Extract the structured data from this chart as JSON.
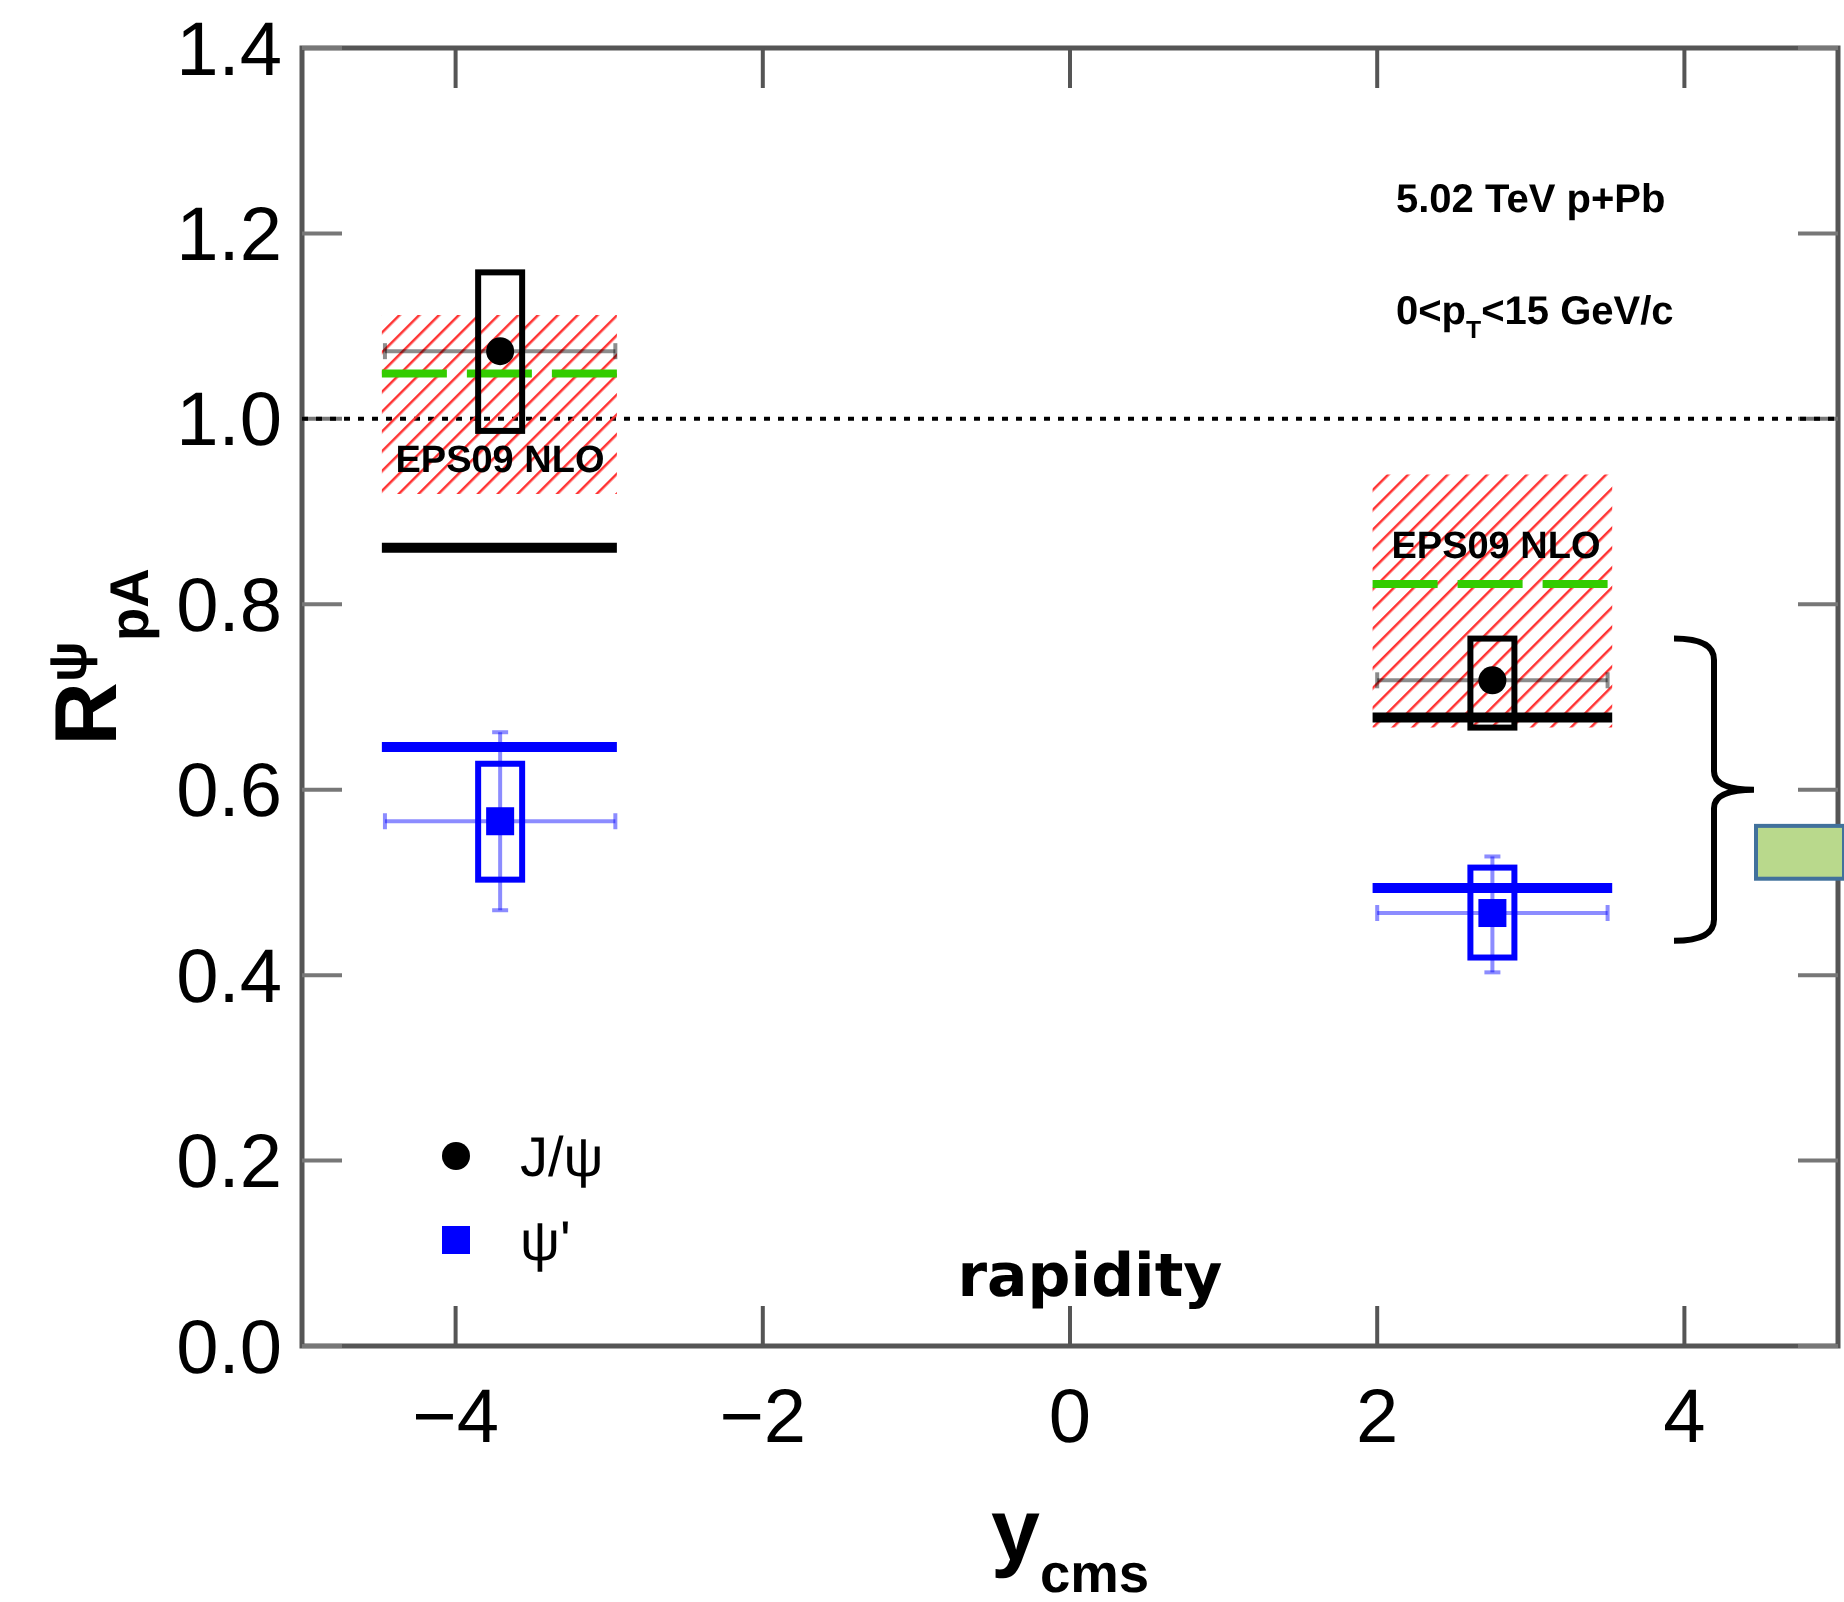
{
  "chart_data": {
    "type": "scatter",
    "annotations": [
      "5.02 TeV p+Pb",
      "0<p$_{T}$<15 GeV/c",
      "rapidity",
      "EPS09 NLO",
      "EPS09 NLO"
    ],
    "xlabel": "y$_{cms}$",
    "ylabel": "R$^{ψ}$$_{pA}$",
    "xlim": [
      -5,
      5
    ],
    "ylim": [
      0,
      1.4
    ],
    "xticks": [
      {
        "value": -4,
        "label": "−4"
      },
      {
        "value": -2,
        "label": "−2"
      },
      0,
      2,
      4
    ],
    "yticks": [
      {
        "value": 0,
        "label": "0.0"
      },
      {
        "value": 0.2,
        "label": "0.2"
      },
      {
        "value": 0.4,
        "label": "0.4"
      },
      {
        "value": 0.6,
        "label": "0.6"
      },
      {
        "value": 0.8,
        "label": "0.8"
      },
      {
        "value": 1,
        "label": "1.0"
      },
      {
        "value": 1.2,
        "label": "1.2"
      },
      {
        "value": 1.4,
        "label": "1.4"
      }
    ],
    "ref_lines": [
      {
        "axis": "y",
        "value": 1,
        "color": "#000000",
        "line_style": "dotted"
      }
    ],
    "legend": "bottom left",
    "series": [
      {
        "type": "line",
        "color": "#33cc00",
        "line_style": "dashed",
        "x": [
          -4.48,
          -2.95,
          0,
          1.97,
          3.53
        ],
        "values": [
          1.049,
          1.049,
          null,
          0.822,
          0.822
        ],
        "lower": [
          0.919,
          0.919,
          null,
          0.667,
          0.667
        ],
        "upper": [
          1.112,
          1.112,
          null,
          0.94,
          0.94
        ]
      },
      {
        "type": "line",
        "color": "#000000",
        "x": [
          -4.48,
          -2.95,
          0,
          1.97,
          3.53
        ],
        "values": [
          0.861,
          0.861,
          null,
          0.678,
          0.678
        ]
      },
      {
        "type": "line",
        "color": "#0000ff",
        "x": [
          -4.48,
          -2.95,
          0,
          1.97,
          3.53
        ],
        "values": [
          0.646,
          0.646,
          null,
          0.494,
          0.494
        ]
      },
      {
        "type": "bar",
        "color": "#000000",
        "x": [
          -3.71,
          2.75
        ],
        "base": [
          0.987,
          0.667
        ],
        "values": [
          0.171,
          0.096
        ]
      },
      {
        "type": "bar",
        "color": "#0000ff",
        "x": [
          -3.71,
          2.75
        ],
        "base": [
          0.503,
          0.419
        ],
        "values": [
          0.125,
          0.097
        ]
      },
      {
        "name": "J/ψ",
        "color": "#000000",
        "marker": "circle",
        "x": [
          -3.71,
          2.75
        ],
        "values": [
          1.073,
          0.718
        ],
        "xerrors": [
          0.75,
          0.75
        ]
      },
      {
        "name": "ψ'",
        "color": "#0000ff",
        "marker": "square",
        "x": [
          -3.71,
          2.75
        ],
        "values": [
          0.566,
          0.467
        ],
        "errors": [
          [
            0.47,
            0.662
          ],
          [
            0.403,
            0.528
          ]
        ],
        "xerrors": [
          0.75,
          0.75
        ]
      }
    ]
  }
}
